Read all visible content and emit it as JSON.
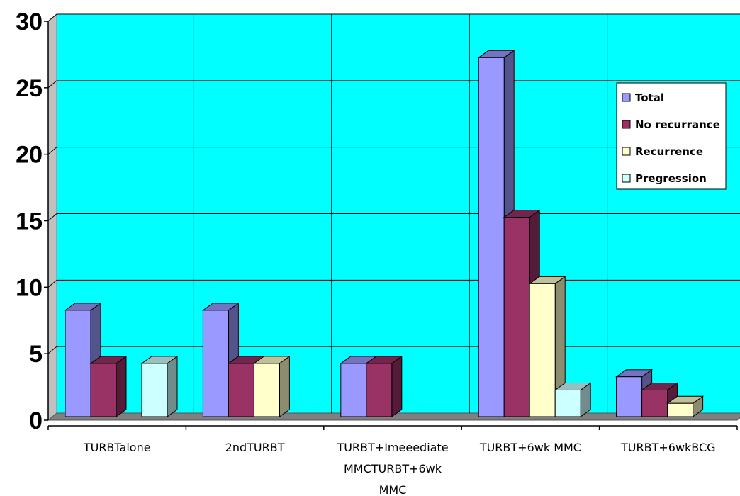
{
  "chart_data": {
    "type": "bar",
    "style": "3d-clustered-column",
    "categories": [
      "TURBTalone",
      "2ndTURBT",
      "TURBT+Imeeediate MMCTURBT+6wk MMC",
      "TURBT+6wk MMC",
      "TURBT+6wkBCG"
    ],
    "category_lines": [
      [
        "TURBTalone"
      ],
      [
        "2ndTURBT"
      ],
      [
        "TURBT+Imeeediate",
        "MMCTURBT+6wk",
        "MMC"
      ],
      [
        "TURBT+6wk MMC"
      ],
      [
        "TURBT+6wkBCG"
      ]
    ],
    "series": [
      {
        "name": "Total",
        "values": [
          8,
          8,
          4,
          27,
          3
        ],
        "color": "#9999FF"
      },
      {
        "name": "No recurrance",
        "values": [
          4,
          4,
          4,
          15,
          2
        ],
        "color": "#993366"
      },
      {
        "name": "Recurrence",
        "values": [
          0,
          4,
          0,
          10,
          1
        ],
        "color": "#FFFFCC"
      },
      {
        "name": "Pregression",
        "values": [
          4,
          0,
          0,
          2,
          0
        ],
        "color": "#CCFFFF"
      }
    ],
    "y_ticks": [
      "0",
      "5",
      "10",
      "15",
      "20",
      "25",
      "30"
    ],
    "ylim": [
      0,
      30
    ],
    "grid": true,
    "legend_position": "right",
    "plot_background": "#00FFFF",
    "floor_color": "#808080"
  }
}
